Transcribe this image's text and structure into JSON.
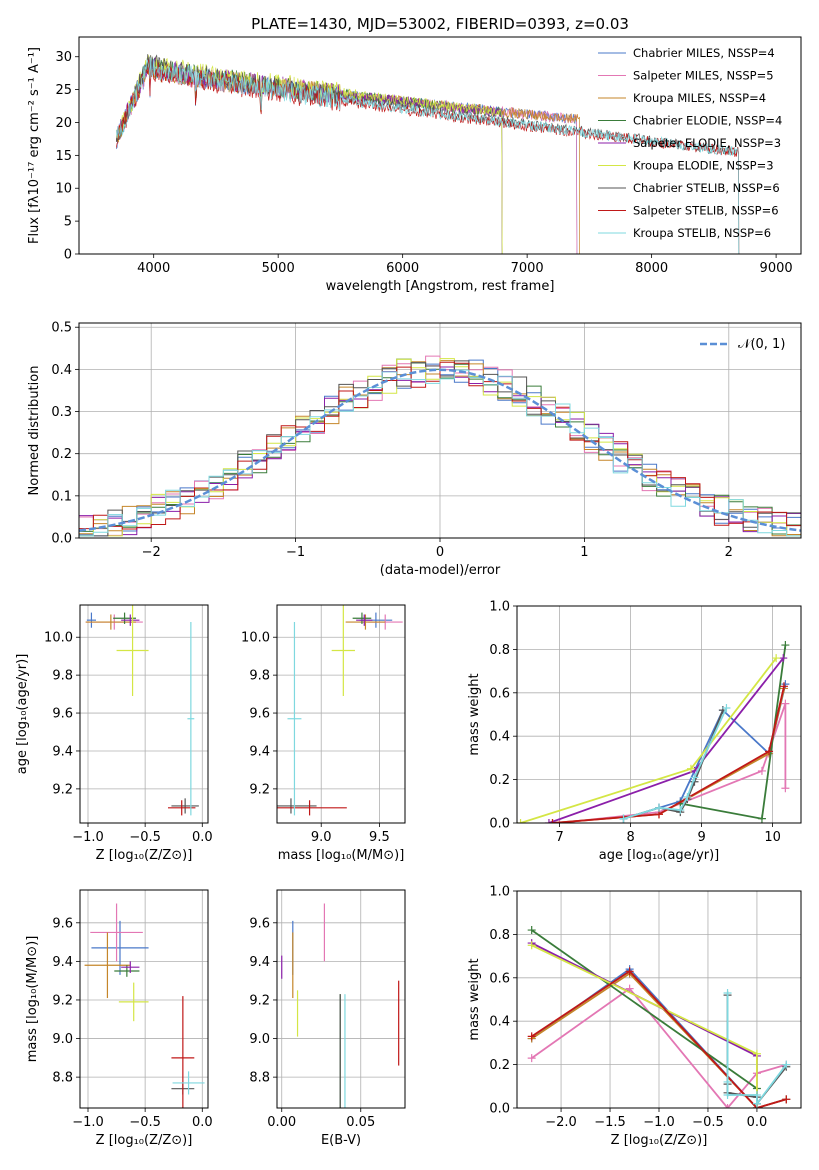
{
  "chart_data": [
    {
      "type": "line",
      "title": "PLATE=1430, MJD=53002, FIBERID=0393, z=0.03",
      "xlabel": "wavelength [Angstrom, rest frame]",
      "ylabel": "Flux [fλ10⁻¹⁷ erg cm⁻² s⁻¹ A⁻¹]",
      "xlim": [
        3400,
        9200
      ],
      "ylim": [
        0,
        33
      ],
      "xticks": [
        4000,
        5000,
        6000,
        7000,
        8000,
        9000
      ],
      "yticks": [
        0,
        5,
        10,
        15,
        20,
        25,
        30
      ],
      "grid": false,
      "legend_position": "top-right",
      "series": [
        {
          "name": "Chabrier MILES, NSSP=4",
          "color": "#4a78c9",
          "start": 3700,
          "end": 7400,
          "start_value": 17.5,
          "peak_value": 28,
          "end_value": 20.5
        },
        {
          "name": "Salpeter MILES, NSSP=5",
          "color": "#e377b4",
          "start": 3700,
          "end": 7400,
          "start_value": 17.5,
          "peak_value": 28,
          "end_value": 20.5
        },
        {
          "name": "Kroupa MILES, NSSP=4",
          "color": "#c5862a",
          "start": 3700,
          "end": 7420,
          "start_value": 17.5,
          "peak_value": 28,
          "end_value": 20.5
        },
        {
          "name": "Chabrier ELODIE, NSSP=4",
          "color": "#3a7c3a",
          "start": 3700,
          "end": 6800,
          "start_value": 17.5,
          "peak_value": 28.5,
          "end_value": 21.5
        },
        {
          "name": "Salpeter ELODIE, NSSP=3",
          "color": "#8b1fa9",
          "start": 3700,
          "end": 6800,
          "start_value": 17.5,
          "peak_value": 28.5,
          "end_value": 21.5
        },
        {
          "name": "Kroupa ELODIE, NSSP=3",
          "color": "#d4e645",
          "start": 3700,
          "end": 6800,
          "start_value": 17.5,
          "peak_value": 29,
          "end_value": 21.5
        },
        {
          "name": "Chabrier STELIB, NSSP=6",
          "color": "#555555",
          "start": 3700,
          "end": 8700,
          "start_value": 17.5,
          "peak_value": 29,
          "end_value": 15.5
        },
        {
          "name": "Salpeter STELIB, NSSP=6",
          "color": "#c01818",
          "start": 3700,
          "end": 8700,
          "start_value": 17.5,
          "peak_value": 28,
          "end_value": 15.5
        },
        {
          "name": "Kroupa STELIB, NSSP=6",
          "color": "#7fd8df",
          "start": 3700,
          "end": 8700,
          "start_value": 17.5,
          "peak_value": 28.5,
          "end_value": 15.5
        }
      ]
    },
    {
      "type": "bar",
      "subtype": "step-histogram",
      "xlabel": "(data-model)/error",
      "ylabel": "Normed distribution",
      "xlim": [
        -2.5,
        2.5
      ],
      "ylim": [
        0,
        0.51
      ],
      "xticks": [
        -2,
        -1,
        0,
        1,
        2
      ],
      "yticks": [
        0.0,
        0.1,
        0.2,
        0.3,
        0.4,
        0.5
      ],
      "grid": true,
      "legend_position": "top-right",
      "legend": [
        "𝒩(0, 1)"
      ],
      "reference_curve": {
        "name": "𝒩(0, 1)",
        "color": "#5b8fd6",
        "dashed": true,
        "mean": 0,
        "sd": 1
      },
      "bin_width": 0.1
    },
    {
      "type": "scatter",
      "subtype": "errorbar",
      "xlabel": "Z [log₁₀(Z/Z⊙)]",
      "ylabel": "age  [log₁₀(age/yr)]",
      "xlim": [
        -1.07,
        0.05
      ],
      "ylim": [
        9.02,
        10.17
      ],
      "xticks": [
        -1.0,
        -0.5,
        0.0
      ],
      "yticks": [
        9.2,
        9.4,
        9.6,
        9.8,
        10.0
      ],
      "grid": true,
      "points": [
        {
          "color": "#4a78c9",
          "x": -0.97,
          "xerr": 0.04,
          "y": 10.09,
          "yerr": 0.04
        },
        {
          "color": "#e377b4",
          "x": -0.77,
          "xerr": 0.25,
          "y": 10.08,
          "yerr": 0.04
        },
        {
          "color": "#c5862a",
          "x": -0.8,
          "xerr": 0.22,
          "y": 10.08,
          "yerr": 0.04
        },
        {
          "color": "#3a7c3a",
          "x": -0.68,
          "xerr": 0.1,
          "y": 10.1,
          "yerr": 0.03
        },
        {
          "color": "#8b1fa9",
          "x": -0.63,
          "xerr": 0.08,
          "y": 10.09,
          "yerr": 0.03
        },
        {
          "color": "#d4e645",
          "x": -0.61,
          "xerr": 0.14,
          "y": 9.93,
          "yerr": 0.24
        },
        {
          "color": "#555555",
          "x": -0.15,
          "xerr": 0.12,
          "y": 9.11,
          "yerr": 0.04
        },
        {
          "color": "#c01818",
          "x": -0.18,
          "xerr": 0.12,
          "y": 9.1,
          "yerr": 0.04
        },
        {
          "color": "#7fd8df",
          "x": -0.1,
          "xerr": 0.03,
          "y": 9.57,
          "yerr": 0.51
        }
      ]
    },
    {
      "type": "scatter",
      "subtype": "errorbar",
      "xlabel": "mass [log₁₀(M/M⊙)]",
      "ylabel": "",
      "xlim": [
        8.62,
        9.72
      ],
      "ylim": [
        9.02,
        10.17
      ],
      "xticks": [
        9.0,
        9.5
      ],
      "yticks": [
        9.2,
        9.4,
        9.6,
        9.8,
        10.0
      ],
      "grid": true,
      "points": [
        {
          "color": "#4a78c9",
          "x": 9.47,
          "xerr": 0.14,
          "y": 10.09,
          "yerr": 0.04
        },
        {
          "color": "#e377b4",
          "x": 9.55,
          "xerr": 0.15,
          "y": 10.08,
          "yerr": 0.04
        },
        {
          "color": "#c5862a",
          "x": 9.38,
          "xerr": 0.17,
          "y": 10.08,
          "yerr": 0.04
        },
        {
          "color": "#3a7c3a",
          "x": 9.35,
          "xerr": 0.08,
          "y": 10.1,
          "yerr": 0.03
        },
        {
          "color": "#8b1fa9",
          "x": 9.37,
          "xerr": 0.07,
          "y": 10.09,
          "yerr": 0.03
        },
        {
          "color": "#d4e645",
          "x": 9.19,
          "xerr": 0.1,
          "y": 9.93,
          "yerr": 0.24
        },
        {
          "color": "#555555",
          "x": 8.74,
          "xerr": 0.22,
          "y": 9.11,
          "yerr": 0.04
        },
        {
          "color": "#c01818",
          "x": 8.9,
          "xerr": 0.32,
          "y": 9.1,
          "yerr": 0.04
        },
        {
          "color": "#7fd8df",
          "x": 8.77,
          "xerr": 0.06,
          "y": 9.57,
          "yerr": 0.51
        }
      ]
    },
    {
      "type": "line",
      "xlabel": "age  [log₁₀(age/yr)]",
      "ylabel": "mass weight",
      "xlim": [
        6.4,
        10.4
      ],
      "ylim": [
        0,
        1.0
      ],
      "xticks": [
        7,
        8,
        9,
        10
      ],
      "yticks": [
        0.0,
        0.2,
        0.4,
        0.6,
        0.8,
        1.0
      ],
      "grid": true,
      "series": [
        {
          "color": "#4a78c9",
          "x": [
            7.9,
            8.4,
            8.7,
            9.3,
            9.95,
            10.18
          ],
          "y": [
            0.02,
            0.07,
            0.1,
            0.52,
            0.32,
            0.64
          ]
        },
        {
          "color": "#e377b4",
          "x": [
            7.0,
            8.4,
            9.85,
            10.18,
            10.18
          ],
          "y": [
            0.0,
            0.05,
            0.24,
            0.55,
            0.16
          ]
        },
        {
          "color": "#c5862a",
          "x": [
            6.9,
            8.4,
            9.95,
            10.16
          ],
          "y": [
            0.0,
            0.04,
            0.32,
            0.62
          ]
        },
        {
          "color": "#3a7c3a",
          "x": [
            8.7,
            9.85,
            10.18
          ],
          "y": [
            0.09,
            0.02,
            0.82
          ]
        },
        {
          "color": "#8b1fa9",
          "x": [
            6.85,
            8.9,
            10.15
          ],
          "y": [
            0.0,
            0.24,
            0.76
          ]
        },
        {
          "color": "#d4e645",
          "x": [
            6.45,
            8.85,
            10.05
          ],
          "y": [
            0.0,
            0.25,
            0.76
          ]
        },
        {
          "color": "#555555",
          "x": [
            7.9,
            8.4,
            8.7,
            8.8,
            8.9,
            9.3
          ],
          "y": [
            0.02,
            0.07,
            0.05,
            0.11,
            0.19,
            0.52
          ]
        },
        {
          "color": "#c01818",
          "x": [
            6.9,
            8.4,
            9.95,
            10.16
          ],
          "y": [
            0.0,
            0.04,
            0.33,
            0.63
          ]
        },
        {
          "color": "#7fd8df",
          "x": [
            7.9,
            8.4,
            8.7,
            8.8,
            8.9,
            9.35
          ],
          "y": [
            0.02,
            0.07,
            0.06,
            0.12,
            0.21,
            0.53
          ]
        }
      ]
    },
    {
      "type": "scatter",
      "subtype": "errorbar",
      "xlabel": "Z [log₁₀(Z/Z⊙)]",
      "ylabel": "mass [log₁₀(M/M⊙)]",
      "xlim": [
        -1.07,
        0.05
      ],
      "ylim": [
        8.64,
        9.77
      ],
      "xticks": [
        -1.0,
        -0.5,
        0.0
      ],
      "yticks": [
        8.8,
        9.0,
        9.2,
        9.4,
        9.6
      ],
      "grid": true,
      "points": [
        {
          "color": "#4a78c9",
          "x": -0.72,
          "xerr": 0.25,
          "y": 9.47,
          "yerr": 0.14
        },
        {
          "color": "#e377b4",
          "x": -0.75,
          "xerr": 0.23,
          "y": 9.55,
          "yerr": 0.15
        },
        {
          "color": "#c5862a",
          "x": -0.83,
          "xerr": 0.2,
          "y": 9.38,
          "yerr": 0.17
        },
        {
          "color": "#3a7c3a",
          "x": -0.66,
          "xerr": 0.11,
          "y": 9.35,
          "yerr": 0.03
        },
        {
          "color": "#8b1fa9",
          "x": -0.63,
          "xerr": 0.08,
          "y": 9.37,
          "yerr": 0.03
        },
        {
          "color": "#d4e645",
          "x": -0.6,
          "xerr": 0.13,
          "y": 9.19,
          "yerr": 0.1
        },
        {
          "color": "#555555",
          "x": -0.17,
          "xerr": 0.1,
          "y": 8.74,
          "yerr": 0.03
        },
        {
          "color": "#c01818",
          "x": -0.17,
          "xerr": 0.1,
          "y": 8.9,
          "yerr": 0.32
        },
        {
          "color": "#7fd8df",
          "x": -0.12,
          "xerr": 0.14,
          "y": 8.77,
          "yerr": 0.06
        }
      ]
    },
    {
      "type": "scatter",
      "subtype": "errorbar",
      "xlabel": "E(B-V)",
      "ylabel": "",
      "xlim": [
        -0.003,
        0.078
      ],
      "ylim": [
        8.64,
        9.77
      ],
      "xticks": [
        0.0,
        0.05
      ],
      "yticks": [
        8.8,
        9.0,
        9.2,
        9.4,
        9.6
      ],
      "grid": true,
      "points": [
        {
          "color": "#4a78c9",
          "x": 0.007,
          "y": 9.47,
          "yerr": 0.14
        },
        {
          "color": "#e377b4",
          "x": 0.027,
          "y": 9.55,
          "yerr": 0.15
        },
        {
          "color": "#c5862a",
          "x": 0.007,
          "y": 9.38,
          "yerr": 0.17
        },
        {
          "color": "#3a7c3a",
          "x": 0.037,
          "y": 8.9,
          "yerr": 0.33
        },
        {
          "color": "#8b1fa9",
          "x": 0.0,
          "y": 9.37,
          "yerr": 0.06
        },
        {
          "color": "#d4e645",
          "x": 0.01,
          "y": 9.13,
          "yerr": 0.12
        },
        {
          "color": "#555555",
          "x": 0.037,
          "y": 8.9,
          "yerr": 0.33
        },
        {
          "color": "#c01818",
          "x": 0.074,
          "y": 9.08,
          "yerr": 0.22
        },
        {
          "color": "#7fd8df",
          "x": 0.04,
          "y": 8.9,
          "yerr": 0.33
        }
      ]
    },
    {
      "type": "line",
      "xlabel": "Z [log₁₀(Z/Z⊙)]",
      "ylabel": "mass weight",
      "xlim": [
        -2.45,
        0.45
      ],
      "ylim": [
        0,
        1.0
      ],
      "xticks": [
        -2.0,
        -1.5,
        -1.0,
        -0.5,
        0.0
      ],
      "yticks": [
        0.0,
        0.2,
        0.4,
        0.6,
        0.8,
        1.0
      ],
      "grid": true,
      "series": [
        {
          "color": "#4a78c9",
          "x": [
            -2.3,
            -1.3,
            0.0,
            0.3
          ],
          "y": [
            0.32,
            0.64,
            0.0,
            0.04
          ]
        },
        {
          "color": "#e377b4",
          "x": [
            -2.3,
            -1.3,
            -0.3,
            0.0,
            0.3
          ],
          "y": [
            0.23,
            0.55,
            0.0,
            0.16,
            0.2
          ]
        },
        {
          "color": "#c5862a",
          "x": [
            -2.3,
            -1.3,
            0.0,
            0.3
          ],
          "y": [
            0.32,
            0.62,
            0.0,
            0.04
          ]
        },
        {
          "color": "#3a7c3a",
          "x": [
            -2.3,
            0.0,
            0.0
          ],
          "y": [
            0.82,
            0.09,
            0.02
          ]
        },
        {
          "color": "#8b1fa9",
          "x": [
            -2.3,
            0.0,
            0.0
          ],
          "y": [
            0.76,
            0.24,
            0.0
          ]
        },
        {
          "color": "#d4e645",
          "x": [
            -2.3,
            0.0,
            0.0
          ],
          "y": [
            0.75,
            0.25,
            0.0
          ]
        },
        {
          "color": "#555555",
          "x": [
            -0.3,
            -0.3,
            -0.3,
            0.0,
            0.0,
            0.3
          ],
          "y": [
            0.52,
            0.11,
            0.07,
            0.05,
            0.02,
            0.19
          ]
        },
        {
          "color": "#c01818",
          "x": [
            -2.3,
            -1.3,
            0.0,
            0.3
          ],
          "y": [
            0.33,
            0.63,
            0.0,
            0.04
          ]
        },
        {
          "color": "#7fd8df",
          "x": [
            -0.3,
            -0.3,
            -0.3,
            0.0,
            0.0,
            0.3
          ],
          "y": [
            0.53,
            0.12,
            0.06,
            0.06,
            0.02,
            0.2
          ]
        }
      ]
    }
  ]
}
